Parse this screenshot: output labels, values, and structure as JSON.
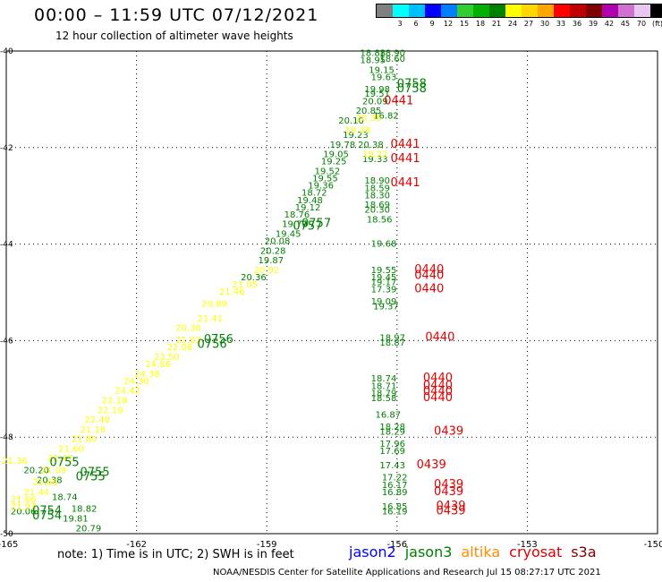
{
  "header": {
    "title": "00:00 – 11:59 UTC 07/12/2021",
    "subtitle": "12 hour collection of altimeter wave heights"
  },
  "legend": {
    "colors": [
      "#808080",
      "#00ffff",
      "#00bfff",
      "#0000ff",
      "#0080ff",
      "#32cd32",
      "#00b000",
      "#008000",
      "#ffff00",
      "#ffd700",
      "#ffa500",
      "#ff0000",
      "#c00000",
      "#800000",
      "#b000b0",
      "#d070d0",
      "#e8c8f0",
      "#000000"
    ],
    "labels": [
      "3",
      "6",
      "9",
      "12",
      "15",
      "18",
      "21",
      "24",
      "27",
      "30",
      "33",
      "36",
      "39",
      "42",
      "45",
      "70",
      "(ft)"
    ],
    "label_slots": [
      1,
      2,
      3,
      4,
      5,
      6,
      7,
      8,
      9,
      10,
      11,
      12,
      13,
      14,
      15,
      16,
      17
    ]
  },
  "axes": {
    "x_ticks": [
      "-165",
      "-162",
      "-159",
      "-156",
      "-153",
      "-150"
    ],
    "y_ticks": [
      "-40",
      "-42",
      "-44",
      "-46",
      "-48",
      "-50"
    ]
  },
  "chart_data": {
    "type": "scatter",
    "xlim": [
      -165,
      -150
    ],
    "ylim": [
      -50,
      -40
    ],
    "grid": true,
    "tracks": [
      {
        "satellite": "jason3",
        "color": "#008000",
        "points": [
          {
            "lon": -156.85,
            "lat": -40.1,
            "label": "18.88"
          },
          {
            "lon": -156.4,
            "lat": -40.1,
            "label": "18.90"
          },
          {
            "lon": -156.85,
            "lat": -40.25,
            "label": "18.95"
          },
          {
            "lon": -156.4,
            "lat": -40.22,
            "label": "18.60"
          },
          {
            "lon": -156.65,
            "lat": -40.45,
            "label": "19.15"
          },
          {
            "lon": -156.6,
            "lat": -40.6,
            "label": "19.63"
          },
          {
            "lon": -156.75,
            "lat": -40.85,
            "label": "19.98"
          },
          {
            "lon": -156.75,
            "lat": -40.95,
            "label": "19.51"
          },
          {
            "lon": -156.8,
            "lat": -41.1,
            "label": "20.09"
          },
          {
            "lon": -156.95,
            "lat": -41.3,
            "label": "20.85"
          },
          {
            "lon": -156.55,
            "lat": -41.4,
            "label": "16.82"
          },
          {
            "lon": -157.35,
            "lat": -41.5,
            "label": "20.10"
          },
          {
            "lon": -157.25,
            "lat": -41.8,
            "label": "19.23"
          },
          {
            "lon": -157.55,
            "lat": -42.0,
            "label": "19.78"
          },
          {
            "lon": -157.7,
            "lat": -42.2,
            "label": "19.05"
          },
          {
            "lon": -157.75,
            "lat": -42.35,
            "label": "19.25"
          },
          {
            "lon": -157.9,
            "lat": -42.55,
            "label": "19.52"
          },
          {
            "lon": -157.95,
            "lat": -42.7,
            "label": "19.55"
          },
          {
            "lon": -158.05,
            "lat": -42.85,
            "label": "19.36"
          },
          {
            "lon": -158.2,
            "lat": -43.0,
            "label": "18.72"
          },
          {
            "lon": -158.3,
            "lat": -43.15,
            "label": "19.48"
          },
          {
            "lon": -158.35,
            "lat": -43.3,
            "label": "19.12"
          },
          {
            "lon": -158.6,
            "lat": -43.45,
            "label": "18.76"
          },
          {
            "lon": -158.65,
            "lat": -43.65,
            "label": "19.79"
          },
          {
            "lon": -158.8,
            "lat": -43.85,
            "label": "19.45"
          },
          {
            "lon": -159.05,
            "lat": -44.0,
            "label": "20.08"
          },
          {
            "lon": -159.15,
            "lat": -44.2,
            "label": "20.28"
          },
          {
            "lon": -159.2,
            "lat": -44.4,
            "label": "19.87"
          },
          {
            "lon": -159.6,
            "lat": -44.75,
            "label": "20.36"
          },
          {
            "lon": -156.9,
            "lat": -42.0,
            "label": "20.38"
          },
          {
            "lon": -156.8,
            "lat": -42.3,
            "label": "19.33"
          },
          {
            "lon": -156.75,
            "lat": -42.75,
            "label": "18.90"
          },
          {
            "lon": -156.75,
            "lat": -42.9,
            "label": "18.59"
          },
          {
            "lon": -156.75,
            "lat": -43.05,
            "label": "18.30"
          },
          {
            "lon": -156.75,
            "lat": -43.25,
            "label": "18.69"
          },
          {
            "lon": -156.75,
            "lat": -43.35,
            "label": "20.30"
          },
          {
            "lon": -156.7,
            "lat": -43.55,
            "label": "18.56"
          },
          {
            "lon": -156.6,
            "lat": -44.05,
            "label": "19.68"
          },
          {
            "lon": -156.6,
            "lat": -44.6,
            "label": "19.55"
          },
          {
            "lon": -156.6,
            "lat": -44.75,
            "label": "19.45"
          },
          {
            "lon": -156.6,
            "lat": -44.85,
            "label": "19.17"
          },
          {
            "lon": -156.6,
            "lat": -45.0,
            "label": "17.39"
          },
          {
            "lon": -156.6,
            "lat": -45.25,
            "label": "19.09"
          },
          {
            "lon": -156.55,
            "lat": -45.35,
            "label": "19.37"
          },
          {
            "lon": -156.4,
            "lat": -46.0,
            "label": "18.97"
          },
          {
            "lon": -156.4,
            "lat": -46.1,
            "label": "18.87"
          },
          {
            "lon": -156.6,
            "lat": -46.85,
            "label": "18.74"
          },
          {
            "lon": -156.6,
            "lat": -47.0,
            "label": "18.71"
          },
          {
            "lon": -156.6,
            "lat": -47.15,
            "label": "18.79"
          },
          {
            "lon": -156.6,
            "lat": -47.25,
            "label": "18.58"
          },
          {
            "lon": -156.5,
            "lat": -47.6,
            "label": "16.87"
          },
          {
            "lon": -156.4,
            "lat": -47.85,
            "label": "18.28"
          },
          {
            "lon": -156.4,
            "lat": -47.95,
            "label": "18.29"
          },
          {
            "lon": -156.4,
            "lat": -48.2,
            "label": "17.96"
          },
          {
            "lon": -156.4,
            "lat": -48.35,
            "label": "17.69"
          },
          {
            "lon": -156.4,
            "lat": -48.65,
            "label": "17.43"
          },
          {
            "lon": -156.35,
            "lat": -48.9,
            "label": "17.22"
          },
          {
            "lon": -156.35,
            "lat": -49.05,
            "label": "16.17"
          },
          {
            "lon": -156.35,
            "lat": -49.2,
            "label": "16.89"
          },
          {
            "lon": -156.35,
            "lat": -49.5,
            "label": "16.85"
          },
          {
            "lon": -156.35,
            "lat": -49.6,
            "label": "16.19"
          },
          {
            "lon": -163.95,
            "lat": -49.3,
            "label": "18.74"
          },
          {
            "lon": -163.5,
            "lat": -49.55,
            "label": "18.82"
          },
          {
            "lon": -163.7,
            "lat": -49.75,
            "label": "19.81"
          },
          {
            "lon": -164.9,
            "lat": -49.6,
            "label": "20.06"
          },
          {
            "lon": -163.4,
            "lat": -49.95,
            "label": "20.79"
          },
          {
            "lon": -164.6,
            "lat": -48.75,
            "label": "20.20"
          },
          {
            "lon": -164.3,
            "lat": -48.95,
            "label": "20.38"
          }
        ]
      },
      {
        "satellite": "jason3",
        "color": "#ffff00",
        "points": [
          {
            "lon": -156.95,
            "lat": -41.45,
            "label": "20.35"
          },
          {
            "lon": -157.2,
            "lat": -41.7,
            "label": "19.28"
          },
          {
            "lon": -156.8,
            "lat": -42.2,
            "label": "19.22"
          },
          {
            "lon": -159.3,
            "lat": -44.6,
            "label": "20.92"
          },
          {
            "lon": -159.8,
            "lat": -44.9,
            "label": "21.05"
          },
          {
            "lon": -160.1,
            "lat": -45.05,
            "label": "21.46"
          },
          {
            "lon": -160.5,
            "lat": -45.3,
            "label": "20.89"
          },
          {
            "lon": -160.6,
            "lat": -45.6,
            "label": "21.41"
          },
          {
            "lon": -161.1,
            "lat": -45.8,
            "label": "20.30"
          },
          {
            "lon": -161.1,
            "lat": -46.05,
            "label": "21.63"
          },
          {
            "lon": -161.3,
            "lat": -46.2,
            "label": "22.06"
          },
          {
            "lon": -161.6,
            "lat": -46.4,
            "label": "23.50"
          },
          {
            "lon": -161.8,
            "lat": -46.55,
            "label": "24.86"
          },
          {
            "lon": -162.05,
            "lat": -46.75,
            "label": "24.38"
          },
          {
            "lon": -162.3,
            "lat": -46.9,
            "label": "24.30"
          },
          {
            "lon": -162.5,
            "lat": -47.1,
            "label": "24.42"
          },
          {
            "lon": -162.8,
            "lat": -47.3,
            "label": "22.18"
          },
          {
            "lon": -162.9,
            "lat": -47.5,
            "label": "22.19"
          },
          {
            "lon": -163.2,
            "lat": -47.7,
            "label": "22.40"
          },
          {
            "lon": -163.3,
            "lat": -47.9,
            "label": "21.18"
          },
          {
            "lon": -163.5,
            "lat": -48.1,
            "label": "21.80"
          },
          {
            "lon": -163.8,
            "lat": -48.3,
            "label": "21.60"
          },
          {
            "lon": -164.05,
            "lat": -48.5,
            "label": "21.47"
          },
          {
            "lon": -165.1,
            "lat": -48.55,
            "label": "21.36"
          },
          {
            "lon": -164.2,
            "lat": -48.75,
            "label": "21.09"
          },
          {
            "lon": -164.4,
            "lat": -49.0,
            "label": "21.66"
          },
          {
            "lon": -164.6,
            "lat": -49.2,
            "label": "21.44"
          },
          {
            "lon": -164.9,
            "lat": -49.35,
            "label": "21.66"
          },
          {
            "lon": -164.9,
            "lat": -49.5,
            "label": "21.93"
          }
        ]
      }
    ],
    "times": [
      {
        "lon": -156.0,
        "lat": -40.75,
        "label": "0758",
        "color": "#008000"
      },
      {
        "lon": -156.0,
        "lat": -40.85,
        "label": "0758",
        "color": "#008000"
      },
      {
        "lon": -158.2,
        "lat": -43.65,
        "label": "0757",
        "color": "#008000"
      },
      {
        "lon": -158.4,
        "lat": -43.7,
        "label": "0757",
        "color": "#008000"
      },
      {
        "lon": -160.45,
        "lat": -46.05,
        "label": "0756",
        "color": "#008000"
      },
      {
        "lon": -160.6,
        "lat": -46.15,
        "label": "0756",
        "color": "#008000"
      },
      {
        "lon": -163.3,
        "lat": -48.8,
        "label": "0755",
        "color": "#008000"
      },
      {
        "lon": -163.4,
        "lat": -48.9,
        "label": "0755",
        "color": "#008000"
      },
      {
        "lon": -164.0,
        "lat": -48.6,
        "label": "0755",
        "color": "#008000"
      },
      {
        "lon": -164.4,
        "lat": -49.6,
        "label": "0754",
        "color": "#008000"
      },
      {
        "lon": -164.4,
        "lat": -49.7,
        "label": "0754",
        "color": "#008000"
      },
      {
        "lon": -156.3,
        "lat": -41.1,
        "label": "0441",
        "color": "#e00000"
      },
      {
        "lon": -156.15,
        "lat": -42.0,
        "label": "0441",
        "color": "#e00000"
      },
      {
        "lon": -156.15,
        "lat": -42.3,
        "label": "0441",
        "color": "#e00000"
      },
      {
        "lon": -156.15,
        "lat": -42.8,
        "label": "0441",
        "color": "#e00000"
      },
      {
        "lon": -155.6,
        "lat": -44.6,
        "label": "0440",
        "color": "#e00000"
      },
      {
        "lon": -155.6,
        "lat": -44.72,
        "label": "0440",
        "color": "#e00000"
      },
      {
        "lon": -155.6,
        "lat": -45.0,
        "label": "0440",
        "color": "#e00000"
      },
      {
        "lon": -155.35,
        "lat": -46.0,
        "label": "0440",
        "color": "#e00000"
      },
      {
        "lon": -155.4,
        "lat": -46.85,
        "label": "0440",
        "color": "#e00000"
      },
      {
        "lon": -155.4,
        "lat": -47.0,
        "label": "0440",
        "color": "#e00000"
      },
      {
        "lon": -155.4,
        "lat": -47.12,
        "label": "0440",
        "color": "#e00000"
      },
      {
        "lon": -155.4,
        "lat": -47.25,
        "label": "0440",
        "color": "#e00000"
      },
      {
        "lon": -155.15,
        "lat": -47.95,
        "label": "0439",
        "color": "#e00000"
      },
      {
        "lon": -155.55,
        "lat": -48.65,
        "label": "0439",
        "color": "#e00000"
      },
      {
        "lon": -155.15,
        "lat": -49.05,
        "label": "0439",
        "color": "#e00000"
      },
      {
        "lon": -155.15,
        "lat": -49.2,
        "label": "0439",
        "color": "#e00000"
      },
      {
        "lon": -155.1,
        "lat": -49.5,
        "label": "0439",
        "color": "#e00000"
      },
      {
        "lon": -155.1,
        "lat": -49.6,
        "label": "0439",
        "color": "#e00000"
      }
    ]
  },
  "footer": {
    "note": "note: 1) Time is in UTC; 2) SWH is in feet",
    "satellites": [
      {
        "name": "jason2",
        "color": "#0000ff"
      },
      {
        "name": "jason3",
        "color": "#008000"
      },
      {
        "name": "altika",
        "color": "#ff8c00"
      },
      {
        "name": "cryosat",
        "color": "#e00000"
      },
      {
        "name": "s3a",
        "color": "#800000"
      }
    ],
    "credit": "NOAA/NESDIS Center for Satellite Applications and Research    Jul 15 08:27:17 UTC 2021"
  }
}
